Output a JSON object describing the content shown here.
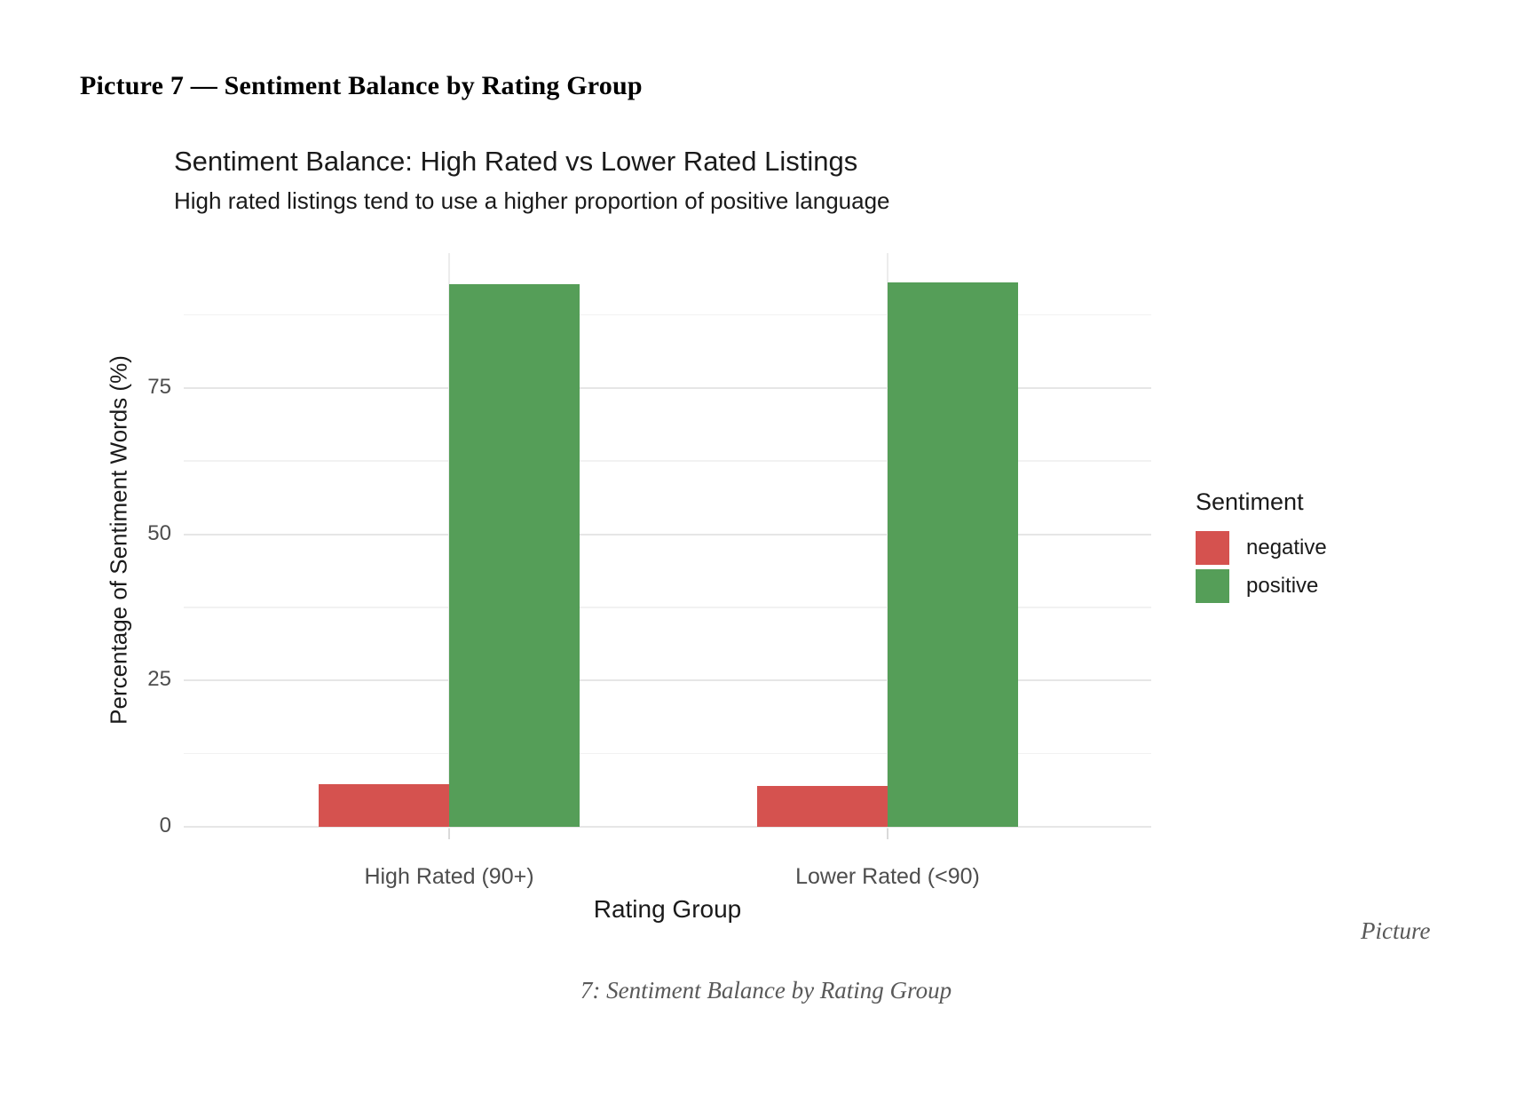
{
  "page": {
    "heading": "Picture 7 — Sentiment Balance by Rating Group",
    "caption_right": "Picture",
    "caption_bottom": "7: Sentiment Balance by Rating Group"
  },
  "chart_data": {
    "type": "bar",
    "title": "Sentiment Balance: High Rated vs Lower Rated Listings",
    "subtitle": "High rated listings tend to use a higher proportion of positive language",
    "xlabel": "Rating Group",
    "ylabel": "Percentage of Sentiment Words (%)",
    "categories": [
      "High Rated (90+)",
      "Lower Rated (<90)"
    ],
    "series": [
      {
        "name": "negative",
        "color": "#d5524f",
        "values": [
          7.3,
          7.0
        ]
      },
      {
        "name": "positive",
        "color": "#559e58",
        "values": [
          92.7,
          93.0
        ]
      }
    ],
    "legend": {
      "title": "Sentiment",
      "position": "right"
    },
    "yticks": [
      0,
      25,
      50,
      75
    ],
    "minor_gridlines": [
      12.5,
      37.5,
      62.5,
      87.5
    ],
    "ylim": [
      0,
      98
    ],
    "grid": true,
    "style": {
      "grid_major": "#e6e6e6",
      "grid_minor": "#f2f2f2",
      "category_gridline": "#ececec",
      "tick_label_color": "#4d4d4d",
      "background": "#ffffff"
    }
  }
}
